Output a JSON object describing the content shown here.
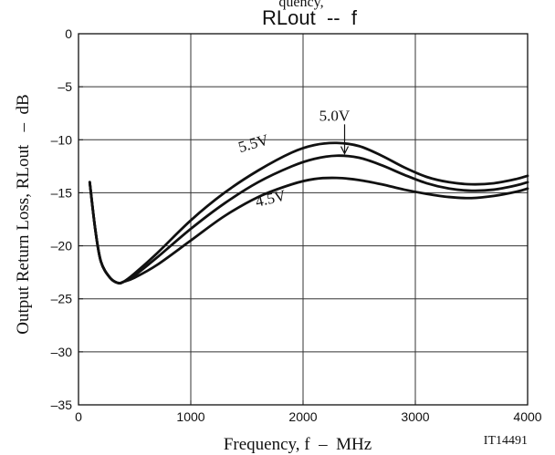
{
  "chart_data": {
    "type": "line",
    "title": "RLout  --  f",
    "top_text": "quency,",
    "xlabel": "Frequency, f  –  MHz",
    "ylabel": "Output Return Loss, RLout   –  dB",
    "figure_id": "IT14491",
    "xlim": [
      0,
      4000
    ],
    "ylim": [
      -35,
      0
    ],
    "x_ticks": [
      0,
      1000,
      2000,
      3000,
      4000
    ],
    "x_tick_labels": [
      "0",
      "1000",
      "2000",
      "3000",
      "4000"
    ],
    "y_ticks": [
      0,
      -5,
      -10,
      -15,
      -20,
      -25,
      -30,
      -35
    ],
    "y_tick_labels": [
      "0",
      "–5",
      "–10",
      "–15",
      "–20",
      "–25",
      "–30",
      "–35"
    ],
    "grid": true,
    "line_color": "#111111",
    "series": [
      {
        "name": "5.5V",
        "points": [
          [
            100,
            -14
          ],
          [
            150,
            -18.5
          ],
          [
            200,
            -21.5
          ],
          [
            280,
            -23
          ],
          [
            350,
            -23.5
          ],
          [
            400,
            -23.4
          ],
          [
            500,
            -22.6
          ],
          [
            700,
            -20.7
          ],
          [
            1000,
            -17.6
          ],
          [
            1300,
            -15
          ],
          [
            1600,
            -12.9
          ],
          [
            1900,
            -11.2
          ],
          [
            2100,
            -10.5
          ],
          [
            2300,
            -10.3
          ],
          [
            2500,
            -10.6
          ],
          [
            2700,
            -11.5
          ],
          [
            2900,
            -12.6
          ],
          [
            3100,
            -13.5
          ],
          [
            3300,
            -14
          ],
          [
            3500,
            -14.2
          ],
          [
            3700,
            -14.1
          ],
          [
            3900,
            -13.7
          ],
          [
            4000,
            -13.4
          ]
        ]
      },
      {
        "name": "5.0V",
        "points": [
          [
            100,
            -14
          ],
          [
            150,
            -18.5
          ],
          [
            200,
            -21.5
          ],
          [
            280,
            -23
          ],
          [
            350,
            -23.5
          ],
          [
            400,
            -23.4
          ],
          [
            500,
            -22.8
          ],
          [
            700,
            -21.1
          ],
          [
            1000,
            -18.4
          ],
          [
            1300,
            -16
          ],
          [
            1600,
            -14
          ],
          [
            1900,
            -12.5
          ],
          [
            2100,
            -11.8
          ],
          [
            2300,
            -11.5
          ],
          [
            2500,
            -11.7
          ],
          [
            2700,
            -12.4
          ],
          [
            2900,
            -13.3
          ],
          [
            3100,
            -14.1
          ],
          [
            3300,
            -14.6
          ],
          [
            3500,
            -14.8
          ],
          [
            3700,
            -14.7
          ],
          [
            3900,
            -14.3
          ],
          [
            4000,
            -14
          ]
        ]
      },
      {
        "name": "4.5V",
        "points": [
          [
            100,
            -14
          ],
          [
            150,
            -18.5
          ],
          [
            200,
            -21.5
          ],
          [
            280,
            -23
          ],
          [
            350,
            -23.5
          ],
          [
            400,
            -23.4
          ],
          [
            500,
            -23
          ],
          [
            700,
            -21.8
          ],
          [
            1000,
            -19.5
          ],
          [
            1300,
            -17.2
          ],
          [
            1600,
            -15.4
          ],
          [
            1900,
            -14.2
          ],
          [
            2100,
            -13.7
          ],
          [
            2300,
            -13.6
          ],
          [
            2500,
            -13.8
          ],
          [
            2700,
            -14.2
          ],
          [
            2900,
            -14.7
          ],
          [
            3100,
            -15.1
          ],
          [
            3300,
            -15.4
          ],
          [
            3500,
            -15.5
          ],
          [
            3700,
            -15.3
          ],
          [
            3900,
            -14.9
          ],
          [
            4000,
            -14.6
          ]
        ]
      }
    ],
    "annotations": [
      {
        "text": "5.5V",
        "x": 1570,
        "y": -10.8,
        "rotate": -16
      },
      {
        "text": "5.0V",
        "x": 2280,
        "y": -8.2,
        "rotate": 0,
        "arrow_to": [
          2370,
          -11.4
        ]
      },
      {
        "text": "4.5V",
        "x": 1720,
        "y": -16,
        "rotate": -13
      }
    ]
  }
}
